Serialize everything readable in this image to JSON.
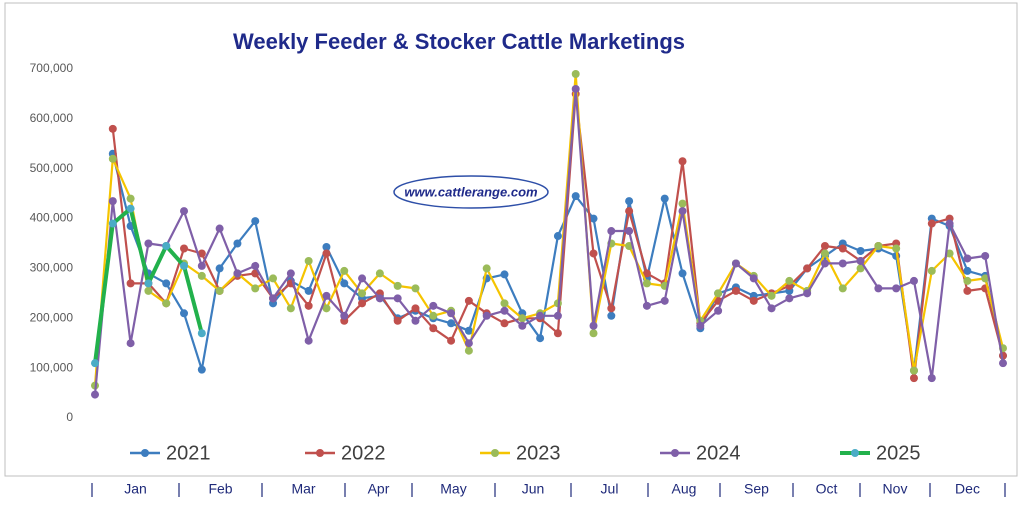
{
  "chart_data": {
    "type": "line",
    "title": "Weekly Feeder & Stocker Cattle Marketings",
    "watermark": "www.cattlerange.com",
    "categories": [
      null,
      null,
      null,
      null,
      null,
      null,
      null,
      null,
      null,
      null,
      null,
      null,
      null,
      null,
      null,
      null,
      null,
      null,
      null,
      null,
      null,
      null,
      null,
      null,
      null,
      null,
      null,
      null,
      null,
      null,
      null,
      null,
      null,
      null,
      null,
      null,
      null,
      null,
      null,
      null,
      null,
      null,
      null,
      null,
      null,
      null,
      null,
      null,
      null,
      null,
      null,
      null
    ],
    "month_labels": [
      "Jan",
      "Feb",
      "Mar",
      "Apr",
      "May",
      "Jun",
      "Jul",
      "Aug",
      "Sep",
      "Oct",
      "Nov",
      "Dec"
    ],
    "ylim": [
      0,
      700000
    ],
    "yticks": [
      0,
      {
        "value": 100000,
        "label": "100,000"
      },
      {
        "value": 200000,
        "label": "200,000"
      },
      {
        "value": 300000,
        "label": "300,000"
      },
      {
        "value": 400000,
        "label": "400,000"
      },
      {
        "value": 500000,
        "label": "500,000"
      },
      {
        "value": 600000,
        "label": "600,000"
      },
      {
        "value": 700000,
        "label": "700,000"
      }
    ],
    "legend": "bottom",
    "series": [
      {
        "name": "2021",
        "color": "#3d7dbf",
        "marker_color": "#3d7dbf",
        "values": [
          null,
          530000,
          385000,
          290000,
          270000,
          210000,
          97000,
          300000,
          350000,
          395000,
          230000,
          275000,
          255000,
          343000,
          270000,
          240000,
          245000,
          200000,
          215000,
          200000,
          190000,
          175000,
          280000,
          288000,
          210000,
          160000,
          365000,
          445000,
          400000,
          205000,
          435000,
          280000,
          440000,
          290000,
          180000,
          250000,
          262000,
          245000,
          250000,
          255000,
          300000,
          325000,
          350000,
          335000,
          340000,
          325000,
          95000,
          400000,
          385000,
          295000,
          285000,
          125000
        ]
      },
      {
        "name": "2022",
        "color": "#c0504d",
        "marker_color": "#c0504d",
        "values": [
          null,
          580000,
          270000,
          270000,
          230000,
          340000,
          330000,
          255000,
          285000,
          290000,
          240000,
          270000,
          225000,
          330000,
          195000,
          230000,
          250000,
          195000,
          220000,
          180000,
          155000,
          235000,
          210000,
          190000,
          200000,
          200000,
          170000,
          650000,
          330000,
          220000,
          415000,
          290000,
          270000,
          515000,
          190000,
          235000,
          255000,
          235000,
          250000,
          265000,
          300000,
          345000,
          340000,
          315000,
          345000,
          350000,
          80000,
          390000,
          400000,
          255000,
          260000,
          125000
        ]
      },
      {
        "name": "2023",
        "color": "#f5c400",
        "marker_color": "#9bbb59",
        "values": [
          65000,
          520000,
          440000,
          255000,
          230000,
          310000,
          285000,
          255000,
          290000,
          260000,
          280000,
          220000,
          315000,
          220000,
          295000,
          250000,
          290000,
          265000,
          260000,
          205000,
          215000,
          135000,
          300000,
          230000,
          200000,
          210000,
          230000,
          690000,
          170000,
          350000,
          345000,
          270000,
          265000,
          430000,
          195000,
          250000,
          310000,
          285000,
          245000,
          275000,
          255000,
          330000,
          260000,
          300000,
          345000,
          340000,
          95000,
          295000,
          330000,
          275000,
          280000,
          140000
        ]
      },
      {
        "name": "2024",
        "color": "#7f5fa8",
        "marker_color": "#7f5fa8",
        "values": [
          47000,
          435000,
          150000,
          350000,
          345000,
          415000,
          305000,
          380000,
          290000,
          305000,
          240000,
          290000,
          155000,
          245000,
          205000,
          280000,
          240000,
          240000,
          195000,
          225000,
          210000,
          150000,
          205000,
          215000,
          185000,
          205000,
          205000,
          660000,
          185000,
          375000,
          375000,
          225000,
          235000,
          415000,
          185000,
          215000,
          310000,
          280000,
          220000,
          240000,
          250000,
          310000,
          310000,
          315000,
          260000,
          260000,
          275000,
          80000,
          390000,
          320000,
          325000,
          110000
        ]
      },
      {
        "name": "2025",
        "color": "#22b14c",
        "marker_color": "#4bacc6",
        "values": [
          110000,
          390000,
          420000,
          270000,
          345000,
          305000,
          170000,
          null,
          null,
          null,
          null,
          null,
          null,
          null,
          null,
          null,
          null,
          null,
          null,
          null,
          null,
          null,
          null,
          null,
          null,
          null,
          null,
          null,
          null,
          null,
          null,
          null,
          null,
          null,
          null,
          null,
          null,
          null,
          null,
          null,
          null,
          null,
          null,
          null,
          null,
          null,
          null,
          null,
          null,
          null,
          null,
          null
        ]
      }
    ]
  }
}
